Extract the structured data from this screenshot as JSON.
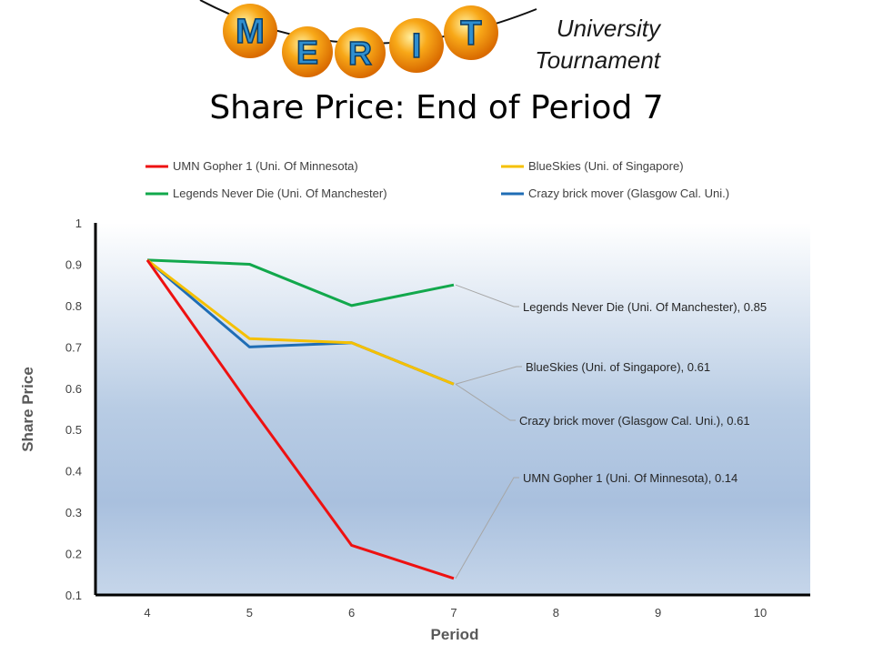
{
  "header": {
    "logo_letters": [
      "M",
      "E",
      "R",
      "I",
      "T"
    ],
    "subtitle_line1": "University",
    "subtitle_line2": "Tournament",
    "title": "Share Price: End of Period 7"
  },
  "colors": {
    "UMN": "#ee1111",
    "BlueSkies": "#f5c000",
    "Legends": "#12a84c",
    "Crazy": "#1f6db5",
    "logo_orb": "#f59a10",
    "logo_letter": "#2f8fd0"
  },
  "chart_data": {
    "type": "line",
    "title": "Share Price: End of Period 7",
    "xlabel": "Period",
    "ylabel": "Share Price",
    "x": [
      4,
      5,
      6,
      7,
      8,
      9,
      10
    ],
    "xlim": [
      4,
      10
    ],
    "ylim": [
      0.1,
      1
    ],
    "yticks": [
      "1",
      "0.9",
      "0.8",
      "0.7",
      "0.6",
      "0.5",
      "0.4",
      "0.3",
      "0.2",
      "0.1"
    ],
    "xticks": [
      "4",
      "5",
      "6",
      "7",
      "8",
      "9",
      "10"
    ],
    "grid": false,
    "legend_position": "top",
    "series": [
      {
        "name": "UMN Gopher 1 (Uni. Of Minnesota)",
        "key": "UMN",
        "x": [
          4,
          5,
          6,
          7
        ],
        "values": [
          0.91,
          0.56,
          0.22,
          0.14
        ],
        "end_label": "UMN Gopher 1 (Uni. Of Minnesota), 0.14"
      },
      {
        "name": "BlueSkies (Uni. of Singapore)",
        "key": "BlueSkies",
        "x": [
          4,
          5,
          6,
          7
        ],
        "values": [
          0.91,
          0.72,
          0.71,
          0.61
        ],
        "end_label": "BlueSkies (Uni. of Singapore), 0.61"
      },
      {
        "name": "Legends Never Die (Uni. Of Manchester)",
        "key": "Legends",
        "x": [
          4,
          5,
          6,
          7
        ],
        "values": [
          0.91,
          0.9,
          0.8,
          0.85
        ],
        "end_label": "Legends Never Die (Uni. Of Manchester), 0.85"
      },
      {
        "name": "Crazy brick mover (Glasgow Cal. Uni.)",
        "key": "Crazy",
        "x": [
          4,
          5,
          6,
          7
        ],
        "values": [
          0.91,
          0.7,
          0.71,
          0.61
        ],
        "end_label": "Crazy brick mover (Glasgow Cal. Uni.), 0.61"
      }
    ]
  }
}
